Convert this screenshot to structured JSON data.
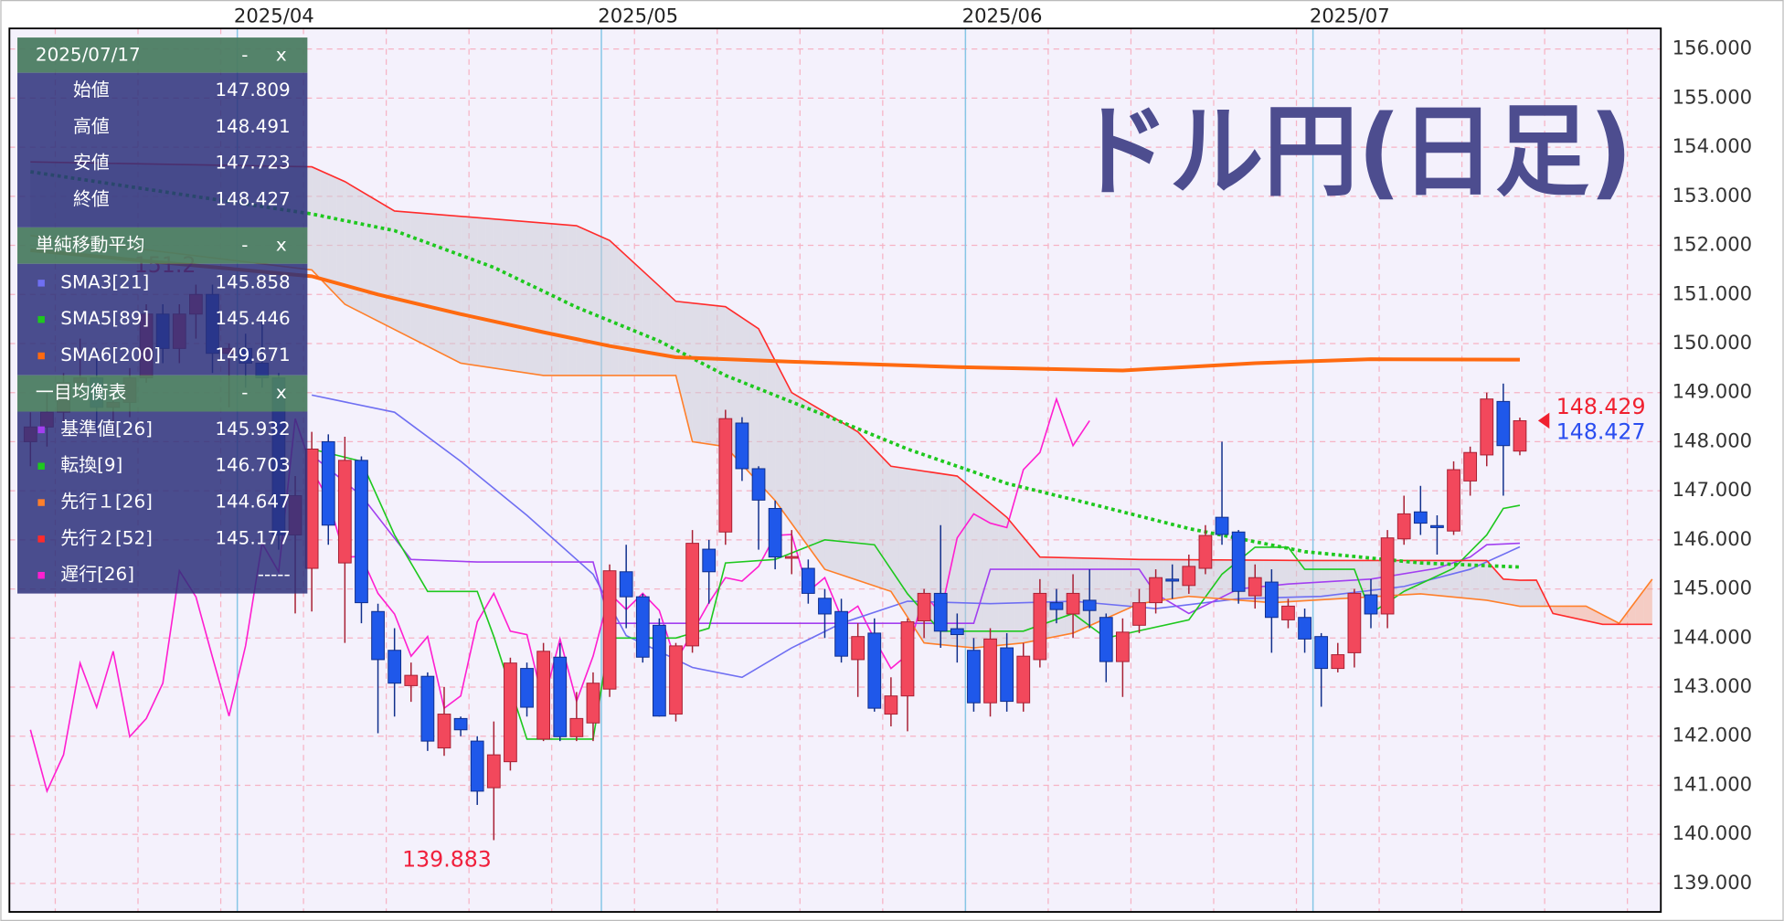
{
  "chart_data": {
    "type": "candlestick",
    "title": "ドル円(日足)",
    "xlim": [
      -1.27,
      98.52
    ],
    "ylim": [
      138.42,
      156.42
    ],
    "xticks": [
      {
        "value": 13,
        "label": "2025/04"
      },
      {
        "value": 35,
        "label": "2025/05"
      },
      {
        "value": 57,
        "label": "2025/06"
      },
      {
        "value": 78,
        "label": "2025/07"
      }
    ],
    "yticks": [
      {
        "value": 139,
        "label": "139.000"
      },
      {
        "value": 140,
        "label": "140.000"
      },
      {
        "value": 141,
        "label": "141.000"
      },
      {
        "value": 142,
        "label": "142.000"
      },
      {
        "value": 143,
        "label": "143.000"
      },
      {
        "value": 144,
        "label": "144.000"
      },
      {
        "value": 145,
        "label": "145.000"
      },
      {
        "value": 146,
        "label": "146.000"
      },
      {
        "value": 147,
        "label": "147.000"
      },
      {
        "value": 148,
        "label": "148.000"
      },
      {
        "value": 149,
        "label": "149.000"
      },
      {
        "value": 150,
        "label": "150.000"
      },
      {
        "value": 151,
        "label": "151.000"
      },
      {
        "value": 152,
        "label": "152.000"
      },
      {
        "value": 153,
        "label": "153.000"
      },
      {
        "value": 154,
        "label": "154.000"
      },
      {
        "value": 155,
        "label": "155.000"
      },
      {
        "value": 156,
        "label": "156.000"
      }
    ],
    "grid": true,
    "up_color": "#f2485c",
    "down_color": "#1f58ea",
    "cloud_color": "#c9c9d4",
    "cloud_color_inverse": "#f6a78c",
    "ask_price": 148.429,
    "ask_color": "#f0202f",
    "open": [
      148.0,
      148.3,
      148.6,
      149.2,
      149.3,
      148.7,
      148.8,
      149.3,
      150.6,
      149.9,
      150.6,
      151.0,
      149.8,
      149.9,
      149.6,
      149.3,
      146.1,
      145.42,
      148.0,
      145.53,
      147.62,
      144.54,
      143.75,
      143.03,
      143.22,
      141.76,
      142.36,
      141.9,
      140.95,
      141.48,
      143.38,
      141.94,
      143.61,
      141.99,
      142.27,
      142.96,
      145.35,
      144.84,
      144.26,
      142.45,
      143.84,
      145.81,
      146.16,
      148.38,
      147.45,
      146.64,
      145.63,
      145.42,
      144.81,
      144.54,
      143.56,
      144.1,
      142.45,
      142.82,
      144.35,
      144.91,
      144.19,
      143.75,
      142.68,
      143.8,
      142.68,
      143.56,
      144.72,
      144.49,
      144.77,
      144.42,
      143.52,
      144.26,
      144.72,
      145.2,
      145.07,
      145.42,
      146.46,
      146.16,
      144.86,
      145.14,
      144.37,
      144.42,
      144.03,
      143.38,
      143.7,
      144.88,
      144.49,
      146.02,
      146.57,
      146.29,
      146.18,
      147.2,
      147.73,
      148.82,
      147.809
    ],
    "high": [
      148.6,
      149.0,
      149.4,
      150.1,
      149.9,
      149.2,
      149.5,
      150.8,
      150.8,
      150.8,
      151.2,
      151.2,
      150.0,
      150.2,
      150.5,
      149.4,
      147.3,
      148.2,
      148.15,
      148.1,
      147.7,
      144.7,
      144.2,
      143.5,
      143.3,
      143.0,
      142.4,
      142.0,
      142.3,
      143.6,
      143.5,
      143.9,
      143.9,
      142.9,
      143.3,
      145.5,
      145.9,
      144.9,
      144.4,
      143.9,
      146.2,
      146.0,
      148.65,
      148.5,
      147.5,
      146.8,
      146.2,
      145.6,
      145.0,
      144.8,
      144.3,
      144.4,
      143.2,
      144.4,
      145.0,
      146.3,
      144.5,
      144.0,
      144.2,
      144.1,
      143.9,
      145.2,
      145.0,
      145.3,
      145.4,
      144.5,
      144.4,
      145.0,
      145.4,
      145.5,
      145.7,
      146.3,
      148.0,
      146.2,
      145.5,
      145.4,
      144.8,
      144.6,
      144.1,
      143.9,
      145.0,
      145.2,
      146.2,
      146.9,
      147.1,
      146.5,
      147.6,
      147.9,
      149.0,
      149.184,
      148.491
    ],
    "low": [
      147.5,
      147.9,
      148.4,
      148.9,
      148.2,
      148.2,
      148.5,
      149.2,
      149.6,
      149.6,
      150.1,
      149.4,
      148.7,
      149.1,
      149.1,
      145.8,
      144.5,
      144.54,
      145.9,
      143.9,
      144.3,
      142.06,
      142.4,
      142.7,
      141.7,
      141.6,
      142.0,
      140.6,
      139.883,
      141.3,
      142.4,
      141.9,
      141.9,
      141.9,
      141.9,
      142.8,
      144.2,
      143.5,
      142.4,
      142.3,
      143.7,
      144.7,
      145.9,
      147.2,
      145.8,
      145.4,
      145.3,
      144.7,
      144.0,
      143.5,
      142.8,
      142.5,
      142.2,
      142.1,
      144.0,
      143.8,
      143.5,
      142.5,
      142.4,
      142.5,
      142.5,
      143.4,
      144.3,
      144.0,
      144.2,
      143.1,
      142.8,
      144.1,
      144.5,
      144.8,
      144.9,
      145.3,
      145.9,
      144.7,
      144.6,
      143.7,
      144.2,
      143.7,
      142.6,
      143.3,
      143.4,
      144.2,
      144.2,
      145.9,
      146.1,
      145.7,
      146.1,
      146.9,
      147.5,
      146.9,
      147.723
    ],
    "close": [
      148.3,
      148.6,
      149.2,
      149.3,
      148.7,
      148.8,
      149.3,
      150.6,
      149.9,
      150.6,
      151.0,
      149.8,
      149.9,
      149.6,
      149.3,
      146.1,
      146.9,
      147.85,
      146.3,
      147.62,
      144.72,
      143.56,
      143.08,
      143.24,
      141.9,
      142.45,
      142.13,
      140.88,
      141.62,
      143.49,
      142.59,
      143.73,
      141.99,
      142.36,
      143.08,
      145.37,
      144.84,
      143.61,
      142.41,
      143.84,
      145.93,
      145.35,
      148.47,
      147.45,
      146.81,
      145.65,
      145.66,
      144.91,
      144.49,
      143.63,
      144.03,
      142.57,
      142.82,
      144.33,
      144.91,
      144.14,
      144.07,
      142.68,
      143.98,
      142.71,
      143.63,
      144.91,
      144.58,
      144.91,
      144.56,
      143.52,
      144.12,
      144.72,
      145.23,
      145.16,
      145.46,
      146.09,
      146.11,
      144.95,
      145.23,
      144.42,
      144.65,
      143.98,
      143.38,
      143.66,
      144.91,
      144.49,
      146.04,
      146.53,
      146.34,
      146.25,
      147.43,
      147.78,
      148.87,
      147.92,
      148.427
    ],
    "series": [
      {
        "name": "SMA3[21]",
        "color": "#6f6ff2",
        "style": "thin",
        "x": [
          17,
          22,
          26,
          30,
          34,
          36,
          40,
          43,
          46,
          49,
          53,
          58,
          63,
          68,
          73,
          78,
          83,
          87,
          90
        ],
        "values": [
          148.95,
          148.6,
          147.6,
          146.5,
          145.3,
          144.05,
          143.4,
          143.2,
          143.8,
          144.3,
          144.75,
          144.7,
          144.75,
          144.6,
          144.8,
          144.85,
          145.05,
          145.4,
          145.858
        ]
      },
      {
        "name": "SMA5[89]",
        "color": "#1ec81e",
        "style": "dotted",
        "x": [
          0,
          17,
          22,
          28,
          33,
          38,
          42,
          48,
          53,
          59,
          64,
          70,
          77,
          84,
          90
        ],
        "values": [
          153.5,
          152.64,
          152.3,
          151.55,
          150.74,
          150.05,
          149.35,
          148.54,
          147.85,
          147.15,
          146.74,
          146.23,
          145.76,
          145.53,
          145.446
        ]
      },
      {
        "name": "SMA6[200]",
        "color": "#ff6a10",
        "style": "thick",
        "x": [
          0,
          17,
          21,
          26,
          31,
          35,
          39,
          46,
          56,
          66,
          74,
          81,
          90
        ],
        "values": [
          151.9,
          151.37,
          151.0,
          150.6,
          150.23,
          149.95,
          149.72,
          149.63,
          149.52,
          149.45,
          149.6,
          149.68,
          149.671
        ]
      },
      {
        "name": "基準値[26]",
        "color": "#a23ff0",
        "style": "thin",
        "x": [
          17,
          20,
          23,
          27,
          34,
          35,
          57,
          58,
          67,
          68,
          70,
          73,
          76,
          81,
          85,
          87,
          88,
          90
        ],
        "values": [
          147.73,
          146.9,
          145.6,
          145.55,
          145.55,
          144.3,
          144.3,
          145.4,
          145.4,
          144.9,
          144.5,
          145.0,
          145.1,
          145.2,
          145.42,
          145.65,
          145.9,
          145.932
        ]
      },
      {
        "name": "転換[9]",
        "color": "#1ec81e",
        "style": "thin",
        "x": [
          17,
          20,
          22,
          24,
          27,
          28,
          30,
          34,
          35,
          39,
          41,
          42,
          45,
          48,
          51,
          53,
          55,
          60,
          63,
          65,
          70,
          72,
          74,
          76,
          77,
          80,
          81,
          83,
          86,
          88,
          89,
          90
        ],
        "values": [
          147.85,
          147.6,
          146.1,
          144.95,
          144.95,
          144.03,
          141.94,
          141.94,
          144.0,
          144.0,
          144.2,
          145.53,
          145.6,
          146.0,
          145.9,
          144.9,
          144.14,
          144.14,
          144.5,
          144.0,
          144.37,
          145.3,
          145.85,
          145.85,
          145.4,
          145.4,
          144.5,
          144.95,
          145.42,
          146.1,
          146.64,
          146.703
        ]
      },
      {
        "name": "先行１[26]",
        "color": "#ff7f2a",
        "style": "thin",
        "x": [
          0,
          6,
          17,
          19,
          26,
          31,
          39,
          40,
          42,
          45,
          48,
          52,
          54,
          57,
          60,
          63,
          67,
          70,
          75,
          81,
          84,
          88,
          90,
          94,
          96,
          98
        ],
        "values": [
          152.2,
          151.95,
          151.5,
          150.8,
          149.6,
          149.35,
          149.35,
          148.0,
          147.9,
          146.8,
          145.4,
          144.95,
          143.9,
          143.8,
          143.9,
          144.1,
          144.7,
          144.85,
          144.72,
          144.84,
          144.9,
          144.77,
          144.647,
          144.65,
          144.3,
          145.2
        ]
      },
      {
        "name": "先行２[52]",
        "color": "#ff2b2b",
        "style": "thin",
        "x": [
          0,
          17,
          19,
          22,
          33,
          35,
          39,
          42,
          44,
          46,
          50,
          52,
          56,
          59,
          61,
          67,
          77,
          88,
          89,
          90,
          91,
          92,
          95,
          98
        ],
        "values": [
          153.7,
          153.6,
          153.3,
          152.7,
          152.4,
          152.1,
          150.86,
          150.75,
          150.3,
          149.0,
          148.2,
          147.5,
          147.3,
          146.46,
          145.65,
          145.6,
          145.58,
          145.58,
          145.2,
          145.177,
          145.18,
          144.5,
          144.28,
          144.28
        ]
      },
      {
        "name": "遅行[26]",
        "color": "#ff1fd0",
        "style": "thin",
        "x": [
          0,
          1,
          2,
          3,
          4,
          5,
          6,
          7,
          8,
          9,
          10,
          11,
          12,
          13,
          14,
          15,
          16,
          17,
          18,
          19,
          20,
          21,
          22,
          23,
          24,
          25,
          26,
          27,
          28,
          29,
          30,
          31,
          32,
          33,
          34,
          35,
          36,
          37,
          38,
          39,
          40,
          41,
          42,
          43,
          44,
          45,
          46,
          47,
          48,
          49,
          50,
          51,
          52,
          53,
          54,
          55,
          56,
          57,
          58,
          59,
          60,
          61,
          62,
          63,
          64
        ],
        "values": [
          142.13,
          140.88,
          141.62,
          143.49,
          142.59,
          143.73,
          141.99,
          142.36,
          143.08,
          145.37,
          144.84,
          143.61,
          142.41,
          143.84,
          145.93,
          145.35,
          148.47,
          147.45,
          146.81,
          145.65,
          145.66,
          144.91,
          144.49,
          143.63,
          144.03,
          142.57,
          142.82,
          144.33,
          144.91,
          144.14,
          144.07,
          142.68,
          143.98,
          142.71,
          143.63,
          144.91,
          144.58,
          144.91,
          144.56,
          143.52,
          144.12,
          144.72,
          145.23,
          145.16,
          145.46,
          146.09,
          146.11,
          144.95,
          145.23,
          144.42,
          144.65,
          143.98,
          143.38,
          143.66,
          144.91,
          144.49,
          146.04,
          146.53,
          146.34,
          146.25,
          147.43,
          147.78,
          148.87,
          147.92,
          148.427
        ]
      }
    ]
  },
  "panels": {
    "controls": [
      "-",
      "x"
    ],
    "ohlc": {
      "date": "2025/07/17",
      "labels": [
        "始値",
        "高値",
        "安値",
        "終値"
      ]
    },
    "sma": {
      "title": "単純移動平均"
    },
    "ichimoku": {
      "title": "一目均衡表",
      "chikou_value": "-----"
    }
  }
}
